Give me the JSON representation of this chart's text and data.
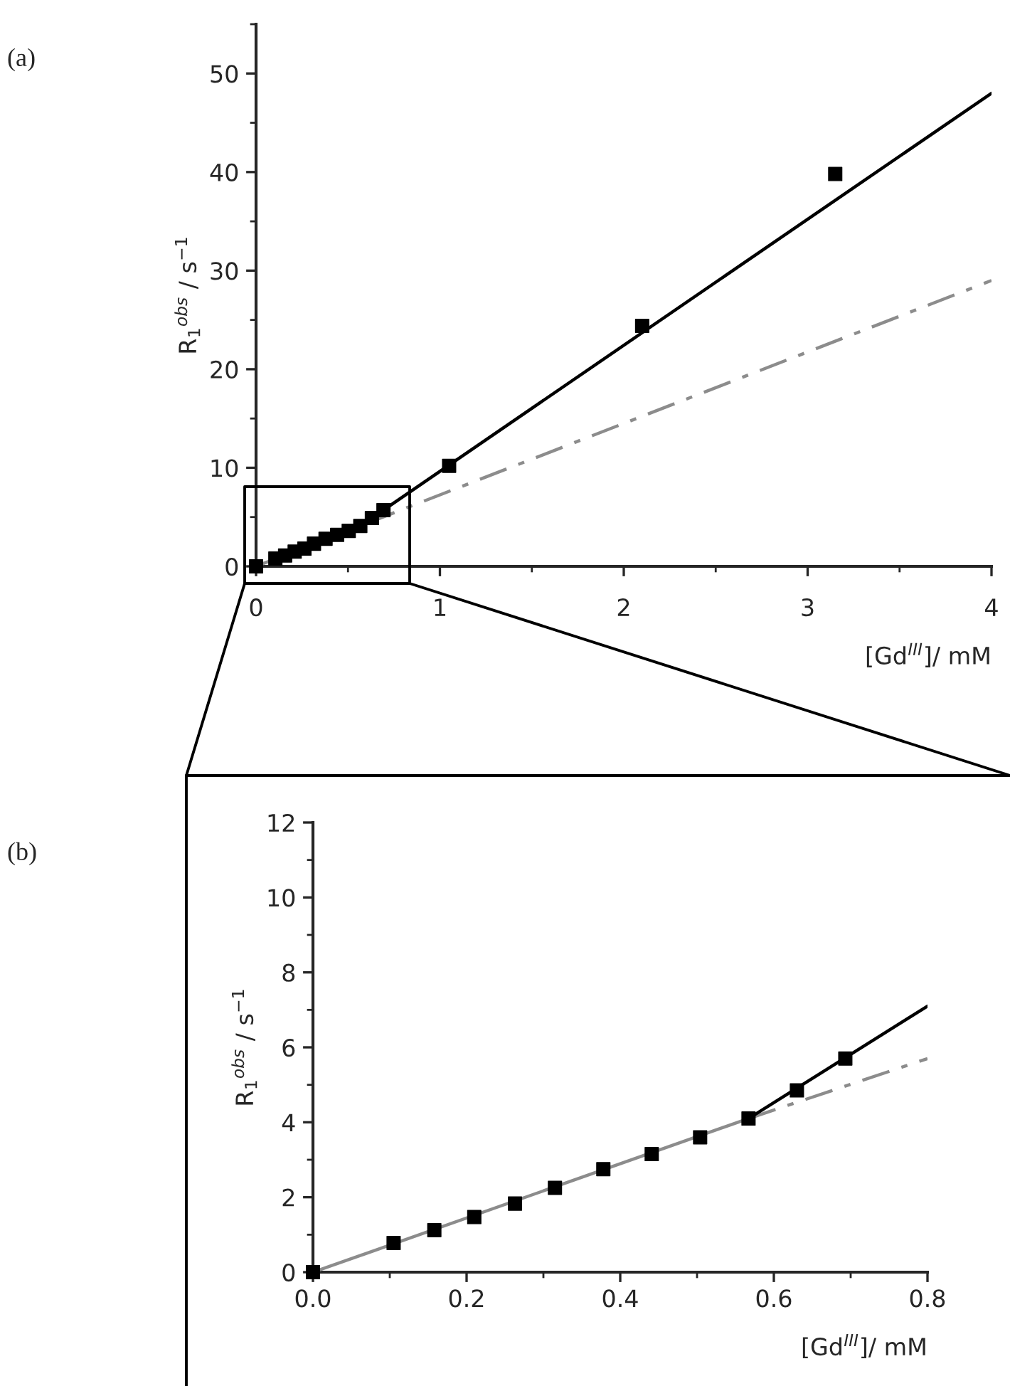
{
  "chart_data": [
    {
      "type": "scatter",
      "xlabel": "[Gd$^{III}$]/ mM",
      "ylabel": "R$_{1}$$^{obs}$ / s$^{−1}$",
      "annotations": [
        "(a)"
      ],
      "xlim": [
        0,
        4
      ],
      "ylim": [
        0,
        55
      ],
      "xticks": [
        0,
        1,
        2,
        3,
        4
      ],
      "yticks": [
        0,
        10,
        20,
        30,
        40,
        50
      ],
      "grid": false,
      "legend": false,
      "series": [
        {
          "type": "line",
          "x": [
            0,
            4
          ],
          "values": [
            0,
            29
          ],
          "color": "#8c8c8c",
          "line_style": "dashdot"
        },
        {
          "type": "line",
          "x": [
            0.567,
            4
          ],
          "values": [
            4.1,
            48
          ],
          "color": "#000000",
          "line_style": "solid"
        },
        {
          "color": "#000000",
          "marker": "square",
          "x": [
            0,
            0.105,
            0.158,
            0.21,
            0.263,
            0.315,
            0.378,
            0.441,
            0.504,
            0.567,
            0.63,
            0.693,
            1.05,
            2.1,
            3.15
          ],
          "values": [
            0,
            0.8,
            1.1,
            1.5,
            1.8,
            2.3,
            2.8,
            3.2,
            3.6,
            4.1,
            4.9,
            5.7,
            10.2,
            24.4,
            39.8
          ]
        }
      ]
    },
    {
      "type": "scatter",
      "xlabel": "[Gd$^{III}$]/ mM",
      "ylabel": "R$_{1}$$^{obs}$ / s$^{−1}$",
      "annotations": [
        "(b)"
      ],
      "xlim": [
        0,
        0.8
      ],
      "ylim": [
        0,
        12
      ],
      "xticks": [
        {
          "value": 0,
          "label": "0.0"
        },
        0.2,
        0.4,
        0.6,
        0.8
      ],
      "yticks": [
        0,
        2,
        4,
        6,
        8,
        10,
        12
      ],
      "grid": false,
      "legend": false,
      "series": [
        {
          "type": "line",
          "x": [
            0.567,
            0.8
          ],
          "values": [
            4.1,
            5.7
          ],
          "color": "#8c8c8c",
          "line_style": "dashdot"
        },
        {
          "type": "line",
          "x": [
            0,
            0.567
          ],
          "values": [
            0,
            4.1
          ],
          "color": "#8c8c8c",
          "line_style": "solid"
        },
        {
          "type": "line",
          "x": [
            0.567,
            0.8
          ],
          "values": [
            4.1,
            7.1
          ],
          "color": "#000000",
          "line_style": "solid"
        },
        {
          "color": "#000000",
          "marker": "square",
          "x": [
            0,
            0.105,
            0.158,
            0.21,
            0.263,
            0.315,
            0.378,
            0.441,
            0.504,
            0.567,
            0.63,
            0.693
          ],
          "values": [
            0,
            0.78,
            1.12,
            1.47,
            1.83,
            2.25,
            2.75,
            3.15,
            3.6,
            4.1,
            4.85,
            5.7
          ]
        }
      ]
    }
  ]
}
